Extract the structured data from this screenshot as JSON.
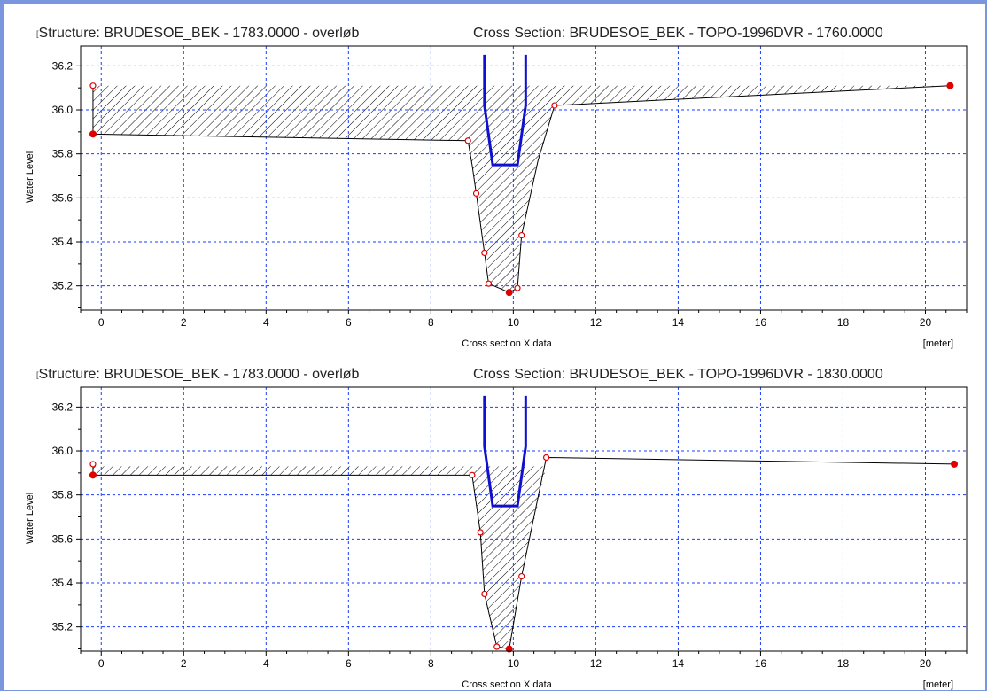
{
  "panels": [
    {
      "title_marker": "[",
      "title_left": "Structure: BRUDESOE_BEK - 1783.0000 - overløb",
      "title_right": "Cross Section: BRUDESOE_BEK - TOPO-1996DVR - 1760.0000",
      "xlabel": "Cross section X data",
      "xunit": "[meter]",
      "ylabel": "Water Level",
      "xlim": [
        -0.5,
        21
      ],
      "ylim": [
        35.09,
        36.29
      ],
      "xticks": [
        0,
        2,
        4,
        6,
        8,
        10,
        12,
        14,
        16,
        18,
        20
      ],
      "yticks": [
        35.2,
        35.4,
        35.6,
        35.8,
        36.0,
        36.2
      ],
      "water_level": 36.11,
      "cross_section": [
        [
          -0.2,
          36.11
        ],
        [
          -0.2,
          35.89
        ],
        [
          8.9,
          35.86
        ],
        [
          9.0,
          35.75
        ],
        [
          9.1,
          35.62
        ],
        [
          9.3,
          35.35
        ],
        [
          9.4,
          35.21
        ],
        [
          9.9,
          35.17
        ],
        [
          10.1,
          35.19
        ],
        [
          10.2,
          35.43
        ],
        [
          10.6,
          35.77
        ],
        [
          11.0,
          36.02
        ],
        [
          20.6,
          36.11
        ]
      ],
      "section_points_open": [
        [
          -0.2,
          36.11
        ],
        [
          8.9,
          35.86
        ],
        [
          9.1,
          35.62
        ],
        [
          9.3,
          35.35
        ],
        [
          9.4,
          35.21
        ],
        [
          10.1,
          35.19
        ],
        [
          10.2,
          35.43
        ],
        [
          11.0,
          36.02
        ]
      ],
      "section_points_filled": [
        [
          -0.2,
          35.89
        ],
        [
          9.9,
          35.17
        ],
        [
          20.6,
          36.11
        ]
      ],
      "structure": [
        [
          9.3,
          36.25
        ],
        [
          9.3,
          36.02
        ],
        [
          9.5,
          35.75
        ],
        [
          10.1,
          35.75
        ],
        [
          10.3,
          36.02
        ],
        [
          10.3,
          36.25
        ]
      ]
    },
    {
      "title_marker": "[",
      "title_left": "Structure: BRUDESOE_BEK - 1783.0000 - overløb",
      "title_right": "Cross Section: BRUDESOE_BEK - TOPO-1996DVR - 1830.0000",
      "xlabel": "Cross section X data",
      "xunit": "[meter]",
      "ylabel": "Water Level",
      "xlim": [
        -0.5,
        21
      ],
      "ylim": [
        35.09,
        36.29
      ],
      "xticks": [
        0,
        2,
        4,
        6,
        8,
        10,
        12,
        14,
        16,
        18,
        20
      ],
      "yticks": [
        35.2,
        35.4,
        35.6,
        35.8,
        36.0,
        36.2
      ],
      "water_level": 35.93,
      "cross_section": [
        [
          -0.2,
          35.94
        ],
        [
          -0.2,
          35.89
        ],
        [
          9.0,
          35.89
        ],
        [
          9.2,
          35.63
        ],
        [
          9.3,
          35.35
        ],
        [
          9.6,
          35.11
        ],
        [
          9.9,
          35.1
        ],
        [
          10.2,
          35.43
        ],
        [
          10.8,
          35.97
        ],
        [
          20.7,
          35.94
        ]
      ],
      "section_points_open": [
        [
          -0.2,
          35.94
        ],
        [
          9.0,
          35.89
        ],
        [
          9.2,
          35.63
        ],
        [
          9.3,
          35.35
        ],
        [
          9.6,
          35.11
        ],
        [
          10.2,
          35.43
        ],
        [
          10.8,
          35.97
        ]
      ],
      "section_points_filled": [
        [
          -0.2,
          35.89
        ],
        [
          9.9,
          35.1
        ],
        [
          20.7,
          35.94
        ]
      ],
      "structure": [
        [
          9.3,
          36.25
        ],
        [
          9.3,
          36.02
        ],
        [
          9.5,
          35.75
        ],
        [
          10.1,
          35.75
        ],
        [
          10.3,
          36.02
        ],
        [
          10.3,
          36.25
        ]
      ]
    }
  ],
  "colors": {
    "grid": "#1a3cff",
    "structure": "#1010d0",
    "points": "#e00000",
    "section": "#000000",
    "frame": "#7a96df"
  }
}
